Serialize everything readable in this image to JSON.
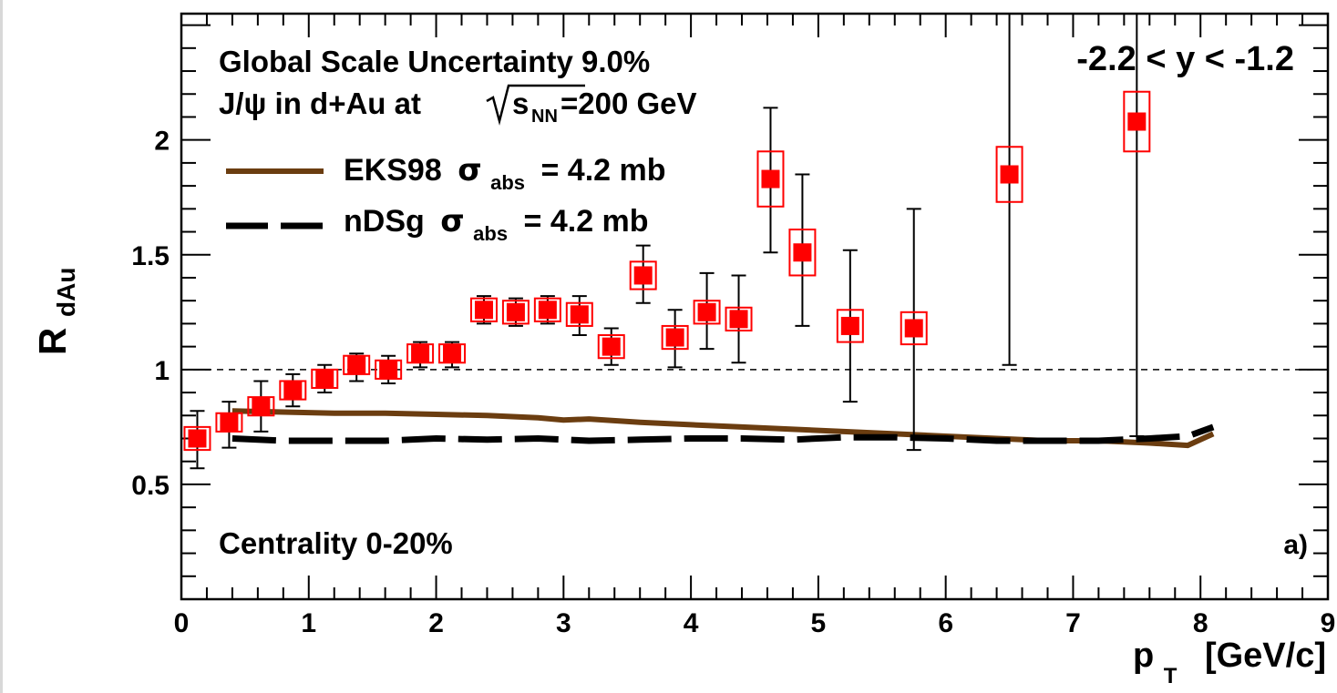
{
  "chart_data": {
    "type": "scatter",
    "xlabel": "p",
    "xlabel_sub": "T",
    "xlabel_unit": "[GeV/c]",
    "ylabel": "R",
    "ylabel_sub": "dAu",
    "xlim": [
      0,
      9
    ],
    "ylim": [
      0,
      2.55
    ],
    "x_ticks": [
      0,
      1,
      2,
      3,
      4,
      5,
      6,
      7,
      8,
      9
    ],
    "y_ticks": [
      0.5,
      1,
      1.5,
      2
    ],
    "x_tick_labels": [
      "0",
      "1",
      "2",
      "3",
      "4",
      "5",
      "6",
      "7",
      "8",
      "9"
    ],
    "y_tick_labels": [
      "0.5",
      "1",
      "1.5",
      "2"
    ],
    "reference_line": 1,
    "annotations": {
      "global_uncertainty": "Global Scale Uncertainty 9.0%",
      "system_prefix": "J/ψ in d+Au at",
      "system_sqrt": "s",
      "system_sub": "NN",
      "system_suffix": "=200 GeV",
      "rapidity": "-2.2 < y < -1.2",
      "centrality": "Centrality 0-20%",
      "panel": "a)"
    },
    "legend": {
      "placement": "top-left",
      "entries": [
        {
          "name": "EKS98",
          "sigma": "σ",
          "sub": "abs",
          "suffix": "= 4.2 mb",
          "style": "solid",
          "color": "#6b3d10"
        },
        {
          "name": "nDSg",
          "sigma": "σ",
          "sub": "abs",
          "suffix": "= 4.2 mb",
          "style": "dashed",
          "color": "#000000"
        }
      ]
    },
    "data_points": {
      "color": "#ff0000",
      "points": [
        {
          "x": 0.125,
          "y": 0.7,
          "lo": 0.57,
          "hi": 0.82,
          "sys": 0.05
        },
        {
          "x": 0.375,
          "y": 0.77,
          "lo": 0.66,
          "hi": 0.86,
          "sys": 0.04
        },
        {
          "x": 0.625,
          "y": 0.84,
          "lo": 0.73,
          "hi": 0.95,
          "sys": 0.04
        },
        {
          "x": 0.875,
          "y": 0.91,
          "lo": 0.84,
          "hi": 0.98,
          "sys": 0.04
        },
        {
          "x": 1.125,
          "y": 0.96,
          "lo": 0.9,
          "hi": 1.02,
          "sys": 0.04
        },
        {
          "x": 1.375,
          "y": 1.02,
          "lo": 0.95,
          "hi": 1.07,
          "sys": 0.04
        },
        {
          "x": 1.625,
          "y": 1.0,
          "lo": 0.94,
          "hi": 1.06,
          "sys": 0.04
        },
        {
          "x": 1.875,
          "y": 1.07,
          "lo": 1.01,
          "hi": 1.12,
          "sys": 0.04
        },
        {
          "x": 2.125,
          "y": 1.07,
          "lo": 1.01,
          "hi": 1.12,
          "sys": 0.04
        },
        {
          "x": 2.375,
          "y": 1.26,
          "lo": 1.2,
          "hi": 1.32,
          "sys": 0.05
        },
        {
          "x": 2.625,
          "y": 1.25,
          "lo": 1.19,
          "hi": 1.31,
          "sys": 0.05
        },
        {
          "x": 2.875,
          "y": 1.26,
          "lo": 1.2,
          "hi": 1.32,
          "sys": 0.05
        },
        {
          "x": 3.125,
          "y": 1.24,
          "lo": 1.15,
          "hi": 1.32,
          "sys": 0.05
        },
        {
          "x": 3.375,
          "y": 1.1,
          "lo": 1.02,
          "hi": 1.18,
          "sys": 0.05
        },
        {
          "x": 3.625,
          "y": 1.41,
          "lo": 1.29,
          "hi": 1.54,
          "sys": 0.06
        },
        {
          "x": 3.875,
          "y": 1.14,
          "lo": 1.01,
          "hi": 1.26,
          "sys": 0.05
        },
        {
          "x": 4.125,
          "y": 1.25,
          "lo": 1.09,
          "hi": 1.42,
          "sys": 0.05
        },
        {
          "x": 4.375,
          "y": 1.22,
          "lo": 1.03,
          "hi": 1.41,
          "sys": 0.05
        },
        {
          "x": 4.625,
          "y": 1.83,
          "lo": 1.51,
          "hi": 2.14,
          "sys": 0.12
        },
        {
          "x": 4.875,
          "y": 1.51,
          "lo": 1.19,
          "hi": 1.85,
          "sys": 0.1
        },
        {
          "x": 5.25,
          "y": 1.19,
          "lo": 0.86,
          "hi": 1.52,
          "sys": 0.07
        },
        {
          "x": 5.75,
          "y": 1.18,
          "lo": 0.65,
          "hi": 1.7,
          "sys": 0.07
        },
        {
          "x": 6.5,
          "y": 1.85,
          "lo": 1.02,
          "hi": 2.6,
          "sys": 0.12
        },
        {
          "x": 7.5,
          "y": 2.08,
          "lo": 0.71,
          "hi": 2.6,
          "sys": 0.13
        }
      ]
    },
    "series": [
      {
        "name": "EKS98",
        "x": [
          0.4,
          0.8,
          1.2,
          1.6,
          2.0,
          2.4,
          2.8,
          3.0,
          3.2,
          3.6,
          4.0,
          4.4,
          4.8,
          5.2,
          5.6,
          6.0,
          6.4,
          6.8,
          7.2,
          7.6,
          7.9,
          8.1
        ],
        "y": [
          0.82,
          0.815,
          0.81,
          0.81,
          0.805,
          0.8,
          0.79,
          0.78,
          0.785,
          0.77,
          0.76,
          0.75,
          0.74,
          0.73,
          0.72,
          0.71,
          0.7,
          0.69,
          0.69,
          0.68,
          0.67,
          0.72
        ]
      },
      {
        "name": "nDSg",
        "x": [
          0.4,
          0.8,
          1.2,
          1.6,
          2.0,
          2.4,
          2.8,
          3.2,
          3.6,
          4.0,
          4.4,
          4.8,
          5.2,
          5.6,
          6.0,
          6.4,
          6.8,
          7.2,
          7.6,
          7.9,
          8.1
        ],
        "y": [
          0.7,
          0.69,
          0.69,
          0.69,
          0.7,
          0.695,
          0.7,
          0.69,
          0.695,
          0.7,
          0.7,
          0.695,
          0.705,
          0.705,
          0.7,
          0.69,
          0.69,
          0.69,
          0.7,
          0.71,
          0.75
        ]
      }
    ]
  }
}
